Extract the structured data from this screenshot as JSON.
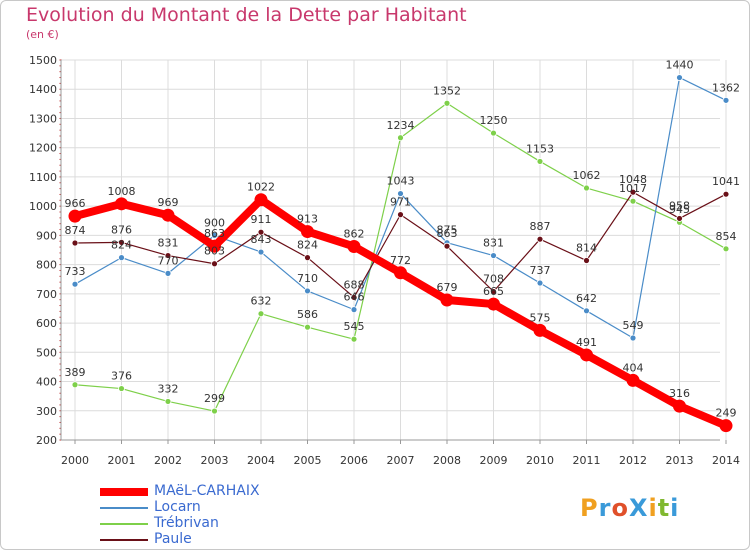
{
  "title": "Evolution du Montant de la Dette par Habitant",
  "subtitle": "(en €)",
  "logo": {
    "text": "ProXiti",
    "colors": [
      "#f0a020",
      "#3a9ad9",
      "#e0502a",
      "#3a9ad9",
      "#f0a020",
      "#80b830",
      "#3a9ad9"
    ]
  },
  "chart_data": {
    "type": "line",
    "title": "Evolution du Montant de la Dette par Habitant",
    "ylabel": "(en €)",
    "x": [
      "2000",
      "2001",
      "2002",
      "2003",
      "2004",
      "2005",
      "2006",
      "2007",
      "2008",
      "2009",
      "2010",
      "2011",
      "2012",
      "2013",
      "2014"
    ],
    "ylim": [
      200,
      1500
    ],
    "yticks": [
      200,
      300,
      400,
      500,
      600,
      700,
      800,
      900,
      1000,
      1100,
      1200,
      1300,
      1400,
      1500
    ],
    "grid": true,
    "legend_position": "bottom-left",
    "series": [
      {
        "name": "MAëL-CARHAIX",
        "color": "#ff0000",
        "values": [
          966,
          1008,
          969,
          863,
          1022,
          913,
          862,
          772,
          679,
          665,
          575,
          491,
          404,
          316,
          249
        ]
      },
      {
        "name": "Locarn",
        "color": "#4a8cc8",
        "values": [
          733,
          824,
          770,
          900,
          843,
          710,
          646,
          1043,
          875,
          831,
          737,
          642,
          549,
          1440,
          1362
        ]
      },
      {
        "name": "Trébrivan",
        "color": "#7ed04a",
        "values": [
          389,
          376,
          332,
          299,
          632,
          586,
          545,
          1234,
          1352,
          1250,
          1153,
          1062,
          1017,
          945,
          854
        ]
      },
      {
        "name": "Paule",
        "color": "#6a1018",
        "values": [
          874,
          876,
          831,
          803,
          911,
          824,
          688,
          971,
          863,
          708,
          887,
          814,
          1048,
          958,
          1041
        ]
      }
    ]
  }
}
